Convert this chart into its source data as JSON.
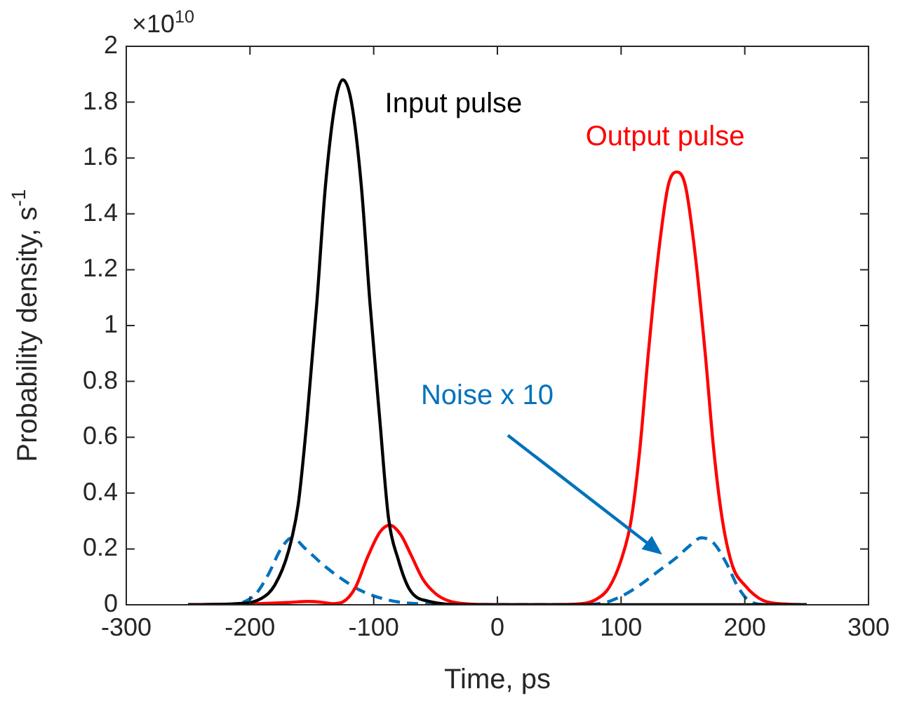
{
  "chart_data": {
    "type": "line",
    "xlabel": "Time, ps",
    "ylabel": "Probability density, s$^{-1}$",
    "annotations": [
      "×10$^{10}$"
    ],
    "xlim": [
      -300,
      300
    ],
    "xticks": [
      -300,
      -200,
      -100,
      0,
      100,
      200,
      300
    ],
    "ylim": [
      0,
      2
    ],
    "yticks": [
      0,
      0.2,
      0.4,
      0.6,
      0.8,
      1,
      1.2,
      1.4,
      1.6,
      1.8,
      2
    ],
    "grid": false,
    "legend": false,
    "marker": "none",
    "series": [
      {
        "name": "Input pulse",
        "color": "#000000",
        "line_style": "solid",
        "x": [
          -250,
          -206,
          -191,
          -180,
          -169,
          -161,
          -154,
          -146,
          -139,
          -131,
          -125,
          -118,
          -110,
          -103,
          -95,
          -88,
          -80,
          -71,
          -56,
          -22,
          250
        ],
        "values": [
          0,
          0.005,
          0.022,
          0.07,
          0.19,
          0.36,
          0.66,
          1.08,
          1.5,
          1.8,
          1.88,
          1.8,
          1.5,
          1.08,
          0.66,
          0.31,
          0.16,
          0.055,
          0.013,
          0,
          0
        ]
      },
      {
        "name": "Output pulse",
        "color": "#ff0000",
        "line_style": "solid",
        "x": [
          -250,
          -200,
          -170,
          -153,
          -140,
          -133,
          -125,
          -115,
          -105,
          -95,
          -87,
          -78,
          -70,
          -60,
          -50,
          -40,
          -25,
          0,
          40,
          68,
          80,
          90,
          100,
          108,
          115,
          122,
          130,
          138,
          145,
          152,
          160,
          168,
          175,
          182,
          190,
          200,
          215,
          235,
          250
        ],
        "values": [
          0,
          0.003,
          0.008,
          0.012,
          0.008,
          0.004,
          0.01,
          0.06,
          0.17,
          0.26,
          0.285,
          0.25,
          0.18,
          0.09,
          0.04,
          0.015,
          0.003,
          0,
          0,
          0.004,
          0.02,
          0.06,
          0.16,
          0.3,
          0.55,
          0.9,
          1.25,
          1.5,
          1.55,
          1.5,
          1.25,
          0.9,
          0.55,
          0.3,
          0.14,
          0.07,
          0.015,
          0.002,
          0
        ]
      },
      {
        "name": "Noise x 10",
        "color": "#0072bd",
        "line_style": "dashed",
        "x": [
          -250,
          -215,
          -205,
          -195,
          -185,
          -175,
          -166,
          -155,
          -140,
          -125,
          -110,
          -95,
          -80,
          -60,
          -40,
          60,
          84,
          100,
          115,
          130,
          145,
          155,
          165,
          175,
          185,
          195,
          205,
          220,
          250
        ],
        "values": [
          0,
          0.002,
          0.01,
          0.04,
          0.11,
          0.2,
          0.24,
          0.2,
          0.14,
          0.09,
          0.05,
          0.025,
          0.01,
          0.003,
          0,
          0,
          0.005,
          0.03,
          0.07,
          0.12,
          0.17,
          0.21,
          0.24,
          0.22,
          0.15,
          0.06,
          0.01,
          0,
          0
        ]
      }
    ]
  }
}
